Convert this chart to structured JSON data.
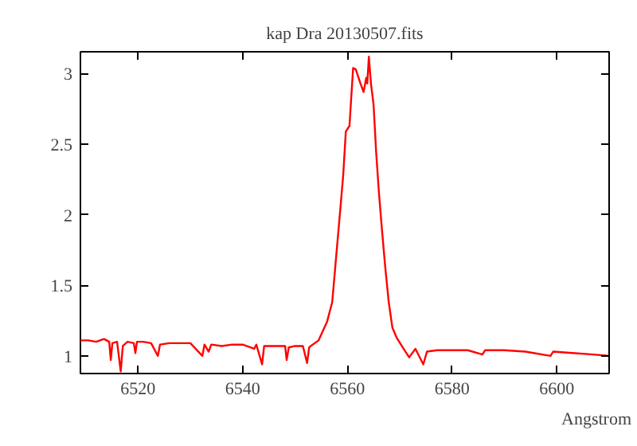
{
  "chart_data": {
    "type": "line",
    "title": "kap Dra 20130507.fits",
    "xlabel": "Angstrom",
    "xlim": [
      6509,
      6610
    ],
    "ylim": [
      0.875,
      3.155
    ],
    "xticks": [
      6520,
      6540,
      6560,
      6580,
      6600
    ],
    "yticks": [
      1,
      1.5,
      2,
      2.5,
      3
    ],
    "grid": false,
    "marker": "none",
    "line_style": "solid",
    "series": [
      {
        "color": "#ff0000",
        "x": [
          6509,
          6510.5,
          6512,
          6513.5,
          6514.5,
          6514.8,
          6515.1,
          6516,
          6516.7,
          6517.1,
          6518,
          6519.2,
          6519.5,
          6519.8,
          6521,
          6522.5,
          6523.8,
          6524.2,
          6526,
          6528,
          6530,
          6532.3,
          6532.7,
          6533.5,
          6534,
          6536,
          6538,
          6540,
          6542.2,
          6542.6,
          6543.7,
          6544.1,
          6546,
          6548.1,
          6548.4,
          6548.8,
          6550,
          6551.5,
          6552.3,
          6552.7,
          6553,
          6554.5,
          6556.1,
          6557.1,
          6557.8,
          6558.6,
          6559.2,
          6559.7,
          6560.4,
          6560.7,
          6561.1,
          6561.6,
          6562.5,
          6563.1,
          6563.6,
          6563.8,
          6564.1,
          6564.5,
          6565.0,
          6565.5,
          6566.0,
          6566.5,
          6567.2,
          6567.9,
          6568.6,
          6569.4,
          6570.4,
          6571.8,
          6573,
          6574.5,
          6575.2,
          6577.1,
          6580,
          6583,
          6585.8,
          6586.3,
          6590,
          6594,
          6598.8,
          6599.3,
          6603,
          6607,
          6610
        ],
        "values": [
          1.11,
          1.11,
          1.1,
          1.12,
          1.1,
          0.97,
          1.09,
          1.1,
          0.89,
          1.07,
          1.1,
          1.09,
          1.02,
          1.1,
          1.1,
          1.09,
          1.0,
          1.08,
          1.09,
          1.09,
          1.09,
          1.0,
          1.08,
          1.03,
          1.08,
          1.07,
          1.08,
          1.08,
          1.05,
          1.08,
          0.94,
          1.07,
          1.07,
          1.07,
          0.97,
          1.06,
          1.07,
          1.07,
          0.95,
          1.06,
          1.07,
          1.11,
          1.24,
          1.38,
          1.68,
          2.02,
          2.28,
          2.59,
          2.63,
          2.81,
          3.04,
          3.03,
          2.93,
          2.87,
          2.97,
          2.93,
          3.12,
          2.93,
          2.78,
          2.44,
          2.17,
          1.94,
          1.64,
          1.38,
          1.2,
          1.13,
          1.07,
          0.99,
          1.05,
          0.94,
          1.03,
          1.04,
          1.04,
          1.04,
          1.01,
          1.04,
          1.04,
          1.03,
          1.0,
          1.03,
          1.02,
          1.01,
          1.0
        ]
      }
    ]
  }
}
